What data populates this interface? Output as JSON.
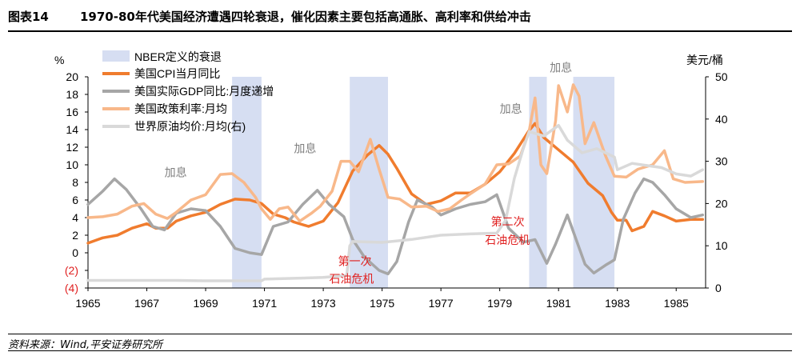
{
  "header": {
    "figure_label": "图表14",
    "title": "1970-80年代美国经济遭遇四轮衰退，催化因素主要包括高通胀、高利率和供给冲击"
  },
  "source": "资料来源：Wind,平安证券研究所",
  "chart_data": {
    "type": "line",
    "title": "1970-80年代美国经济遭遇四轮衰退，催化因素主要包括高通胀、高利率和供给冲击",
    "left_axis": {
      "unit": "%",
      "ylim": [
        -4,
        20
      ],
      "ticks": [
        -4,
        -2,
        0,
        2,
        4,
        6,
        8,
        10,
        12,
        14,
        16,
        18,
        20
      ],
      "tick_labels": [
        "(4)",
        "(2)",
        "0",
        "2",
        "4",
        "6",
        "8",
        "10",
        "12",
        "14",
        "16",
        "18",
        "20"
      ]
    },
    "right_axis": {
      "unit": "美元/桶",
      "ylim": [
        0,
        50
      ],
      "ticks": [
        0,
        10,
        20,
        30,
        40,
        50
      ],
      "tick_labels": [
        "0",
        "10",
        "20",
        "30",
        "40",
        "50"
      ]
    },
    "x_axis": {
      "xlim": [
        1965,
        1986
      ],
      "ticks": [
        1965,
        1967,
        1969,
        1971,
        1973,
        1975,
        1977,
        1979,
        1981,
        1983,
        1985
      ],
      "tick_labels": [
        "1965",
        "1967",
        "1969",
        "1971",
        "1973",
        "1975",
        "1977",
        "1979",
        "1981",
        "1983",
        "1985"
      ]
    },
    "recessions": {
      "name": "NBER定义的衰退",
      "color": "#d6def2",
      "periods": [
        [
          1969.9,
          1970.9
        ],
        [
          1973.9,
          1975.2
        ],
        [
          1980.0,
          1980.6
        ],
        [
          1981.5,
          1982.9
        ]
      ]
    },
    "series": [
      {
        "name": "美国CPI当月同比",
        "axis": "left",
        "color": "#f07c2e",
        "points": [
          [
            1965.0,
            1.1
          ],
          [
            1965.5,
            1.7
          ],
          [
            1966.0,
            2.0
          ],
          [
            1966.5,
            2.8
          ],
          [
            1967.0,
            3.3
          ],
          [
            1967.3,
            2.8
          ],
          [
            1967.7,
            2.8
          ],
          [
            1968.0,
            3.6
          ],
          [
            1968.5,
            4.2
          ],
          [
            1969.0,
            4.6
          ],
          [
            1969.5,
            5.5
          ],
          [
            1970.0,
            6.1
          ],
          [
            1970.5,
            6.0
          ],
          [
            1970.9,
            5.6
          ],
          [
            1971.3,
            4.4
          ],
          [
            1971.7,
            4.0
          ],
          [
            1972.0,
            3.5
          ],
          [
            1972.5,
            3.0
          ],
          [
            1973.0,
            3.6
          ],
          [
            1973.5,
            5.7
          ],
          [
            1974.0,
            9.3
          ],
          [
            1974.5,
            11.1
          ],
          [
            1974.9,
            12.2
          ],
          [
            1975.2,
            11.2
          ],
          [
            1975.5,
            9.6
          ],
          [
            1976.0,
            6.7
          ],
          [
            1976.5,
            5.5
          ],
          [
            1977.0,
            5.9
          ],
          [
            1977.5,
            6.8
          ],
          [
            1978.0,
            6.8
          ],
          [
            1978.5,
            7.8
          ],
          [
            1979.0,
            9.2
          ],
          [
            1979.5,
            11.3
          ],
          [
            1980.0,
            13.9
          ],
          [
            1980.2,
            14.7
          ],
          [
            1980.5,
            13.1
          ],
          [
            1981.0,
            11.7
          ],
          [
            1981.5,
            10.3
          ],
          [
            1982.0,
            7.9
          ],
          [
            1982.5,
            6.5
          ],
          [
            1982.8,
            4.6
          ],
          [
            1983.0,
            3.7
          ],
          [
            1983.3,
            3.7
          ],
          [
            1983.5,
            2.5
          ],
          [
            1983.9,
            3.0
          ],
          [
            1984.2,
            4.7
          ],
          [
            1984.6,
            4.2
          ],
          [
            1985.0,
            3.6
          ],
          [
            1985.5,
            3.8
          ],
          [
            1985.9,
            3.8
          ]
        ]
      },
      {
        "name": "美国实际GDP同比:月度递增",
        "axis": "left",
        "color": "#a6a6a6",
        "points": [
          [
            1965.0,
            5.5
          ],
          [
            1965.5,
            7.0
          ],
          [
            1965.9,
            8.4
          ],
          [
            1966.3,
            7.2
          ],
          [
            1966.8,
            5.0
          ],
          [
            1967.2,
            3.0
          ],
          [
            1967.6,
            2.6
          ],
          [
            1968.0,
            4.5
          ],
          [
            1968.5,
            5.0
          ],
          [
            1969.0,
            4.8
          ],
          [
            1969.5,
            3.0
          ],
          [
            1970.0,
            0.5
          ],
          [
            1970.5,
            0.0
          ],
          [
            1970.9,
            -0.2
          ],
          [
            1971.3,
            3.0
          ],
          [
            1971.8,
            3.5
          ],
          [
            1972.3,
            5.5
          ],
          [
            1972.8,
            7.1
          ],
          [
            1973.2,
            5.5
          ],
          [
            1973.7,
            4.1
          ],
          [
            1974.0,
            1.5
          ],
          [
            1974.4,
            -0.5
          ],
          [
            1974.9,
            -2.0
          ],
          [
            1975.2,
            -2.4
          ],
          [
            1975.5,
            -1.0
          ],
          [
            1975.9,
            3.5
          ],
          [
            1976.2,
            6.0
          ],
          [
            1976.7,
            5.2
          ],
          [
            1977.0,
            4.3
          ],
          [
            1977.5,
            5.0
          ],
          [
            1978.0,
            5.5
          ],
          [
            1978.5,
            5.8
          ],
          [
            1978.9,
            6.6
          ],
          [
            1979.3,
            2.8
          ],
          [
            1979.8,
            1.2
          ],
          [
            1980.2,
            1.5
          ],
          [
            1980.6,
            -1.2
          ],
          [
            1980.9,
            1.0
          ],
          [
            1981.3,
            4.3
          ],
          [
            1981.6,
            1.5
          ],
          [
            1981.9,
            -1.3
          ],
          [
            1982.2,
            -2.3
          ],
          [
            1982.6,
            -1.4
          ],
          [
            1982.9,
            -0.8
          ],
          [
            1983.2,
            3.8
          ],
          [
            1983.6,
            6.8
          ],
          [
            1983.9,
            8.4
          ],
          [
            1984.2,
            8.0
          ],
          [
            1984.6,
            6.6
          ],
          [
            1985.0,
            5.0
          ],
          [
            1985.5,
            4.0
          ],
          [
            1985.9,
            4.3
          ]
        ]
      },
      {
        "name": "美国政策利率:月均",
        "axis": "left",
        "color": "#f8b88a",
        "points": [
          [
            1965.0,
            4.0
          ],
          [
            1965.5,
            4.1
          ],
          [
            1966.0,
            4.4
          ],
          [
            1966.5,
            5.3
          ],
          [
            1966.9,
            5.6
          ],
          [
            1967.3,
            4.4
          ],
          [
            1967.7,
            3.9
          ],
          [
            1968.0,
            4.6
          ],
          [
            1968.5,
            6.0
          ],
          [
            1969.0,
            6.6
          ],
          [
            1969.5,
            8.9
          ],
          [
            1969.9,
            9.0
          ],
          [
            1970.3,
            8.0
          ],
          [
            1970.7,
            6.3
          ],
          [
            1970.9,
            5.0
          ],
          [
            1971.2,
            3.8
          ],
          [
            1971.5,
            5.0
          ],
          [
            1971.8,
            5.2
          ],
          [
            1972.2,
            3.6
          ],
          [
            1972.6,
            4.5
          ],
          [
            1972.9,
            5.3
          ],
          [
            1973.3,
            7.0
          ],
          [
            1973.6,
            10.4
          ],
          [
            1973.9,
            10.4
          ],
          [
            1974.2,
            9.2
          ],
          [
            1974.6,
            12.9
          ],
          [
            1974.9,
            9.5
          ],
          [
            1975.2,
            6.3
          ],
          [
            1975.6,
            6.1
          ],
          [
            1976.0,
            5.2
          ],
          [
            1976.5,
            5.3
          ],
          [
            1976.9,
            4.7
          ],
          [
            1977.3,
            5.0
          ],
          [
            1977.7,
            6.0
          ],
          [
            1978.0,
            6.7
          ],
          [
            1978.5,
            7.8
          ],
          [
            1978.9,
            10.0
          ],
          [
            1979.3,
            10.1
          ],
          [
            1979.7,
            11.0
          ],
          [
            1980.0,
            13.8
          ],
          [
            1980.2,
            17.6
          ],
          [
            1980.4,
            10.0
          ],
          [
            1980.6,
            9.0
          ],
          [
            1980.9,
            15.0
          ],
          [
            1981.0,
            19.0
          ],
          [
            1981.3,
            16.0
          ],
          [
            1981.5,
            19.1
          ],
          [
            1981.7,
            17.8
          ],
          [
            1981.9,
            12.4
          ],
          [
            1982.2,
            14.8
          ],
          [
            1982.6,
            11.0
          ],
          [
            1982.9,
            8.7
          ],
          [
            1983.3,
            8.6
          ],
          [
            1983.7,
            9.5
          ],
          [
            1984.2,
            10.0
          ],
          [
            1984.6,
            11.6
          ],
          [
            1984.9,
            8.4
          ],
          [
            1985.3,
            8.0
          ],
          [
            1985.9,
            8.1
          ]
        ]
      },
      {
        "name": "世界原油均价:月均(右)",
        "axis": "right",
        "color": "#d9d9d9",
        "points": [
          [
            1965.0,
            1.8
          ],
          [
            1966.0,
            1.8
          ],
          [
            1967.0,
            1.8
          ],
          [
            1968.0,
            1.8
          ],
          [
            1969.0,
            1.7
          ],
          [
            1970.0,
            1.7
          ],
          [
            1970.9,
            1.7
          ],
          [
            1971.0,
            2.1
          ],
          [
            1972.0,
            2.3
          ],
          [
            1973.0,
            2.5
          ],
          [
            1973.8,
            3.0
          ],
          [
            1973.9,
            10.0
          ],
          [
            1974.0,
            11.0
          ],
          [
            1975.0,
            10.8
          ],
          [
            1976.0,
            11.5
          ],
          [
            1977.0,
            12.5
          ],
          [
            1978.0,
            12.8
          ],
          [
            1978.9,
            13.0
          ],
          [
            1979.2,
            16.0
          ],
          [
            1979.5,
            26.0
          ],
          [
            1979.8,
            33.0
          ],
          [
            1980.0,
            37.0
          ],
          [
            1980.5,
            36.0
          ],
          [
            1980.9,
            38.0
          ],
          [
            1981.0,
            38.5
          ],
          [
            1981.3,
            35.0
          ],
          [
            1981.8,
            32.0
          ],
          [
            1982.3,
            33.0
          ],
          [
            1982.9,
            31.0
          ],
          [
            1983.0,
            28.0
          ],
          [
            1983.5,
            29.5
          ],
          [
            1984.0,
            29.0
          ],
          [
            1984.5,
            28.5
          ],
          [
            1985.0,
            27.0
          ],
          [
            1985.5,
            26.5
          ],
          [
            1985.9,
            28.0
          ]
        ]
      }
    ],
    "annotations": [
      {
        "text": "加息",
        "x": 1967.6,
        "y": 8.7,
        "color": "#7f7f7f"
      },
      {
        "text": "加息",
        "x": 1972.0,
        "y": 11.4,
        "color": "#7f7f7f"
      },
      {
        "text": "加息",
        "x": 1979.0,
        "y": 15.9,
        "color": "#7f7f7f"
      },
      {
        "text": "加息",
        "x": 1980.7,
        "y": 20.6,
        "color": "#7f7f7f"
      },
      {
        "text": "第一次",
        "x": 1973.5,
        "y": -1.4,
        "color": "#e02020"
      },
      {
        "text": "石油危机",
        "x": 1973.2,
        "y": -3.4,
        "color": "#e02020"
      },
      {
        "text": "第二次",
        "x": 1978.7,
        "y": 3.1,
        "color": "#e02020"
      },
      {
        "text": "石油危机",
        "x": 1978.5,
        "y": 1.0,
        "color": "#e02020"
      }
    ],
    "legend_position": "top-left"
  }
}
